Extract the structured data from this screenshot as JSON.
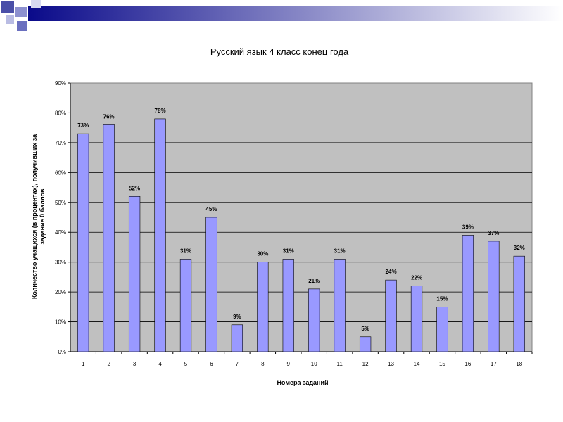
{
  "slide": {
    "banner_gradient": [
      "#0a0a8a",
      "#ffffff"
    ],
    "decor_color": "#4a4fa8"
  },
  "chart_data": {
    "type": "bar",
    "title": "Русский язык 4 класс конец года",
    "xlabel": "Номера заданий",
    "ylabel_line1": "Количество учащихся (в процентах), получивших за",
    "ylabel_line2": "задание 0 баллов",
    "categories": [
      "1",
      "2",
      "3",
      "4",
      "5",
      "6",
      "7",
      "8",
      "9",
      "10",
      "11",
      "12",
      "13",
      "14",
      "15",
      "16",
      "17",
      "18"
    ],
    "values": [
      73,
      76,
      52,
      78,
      31,
      45,
      9,
      30,
      31,
      21,
      31,
      5,
      24,
      22,
      15,
      39,
      37,
      32
    ],
    "data_labels": [
      "73%",
      "76%",
      "52%",
      "78%",
      "31%",
      "45%",
      "9%",
      "30%",
      "31%",
      "21%",
      "31%",
      "5%",
      "24%",
      "22%",
      "15%",
      "39%",
      "37%",
      "32%"
    ],
    "ylim": [
      0,
      90
    ],
    "yticks": [
      "0%",
      "10%",
      "20%",
      "30%",
      "40%",
      "50%",
      "60%",
      "70%",
      "80%",
      "90%"
    ],
    "grid": true,
    "bar_color": "#9999ff",
    "plot_background": "#c0c0c0",
    "legend": "none"
  }
}
